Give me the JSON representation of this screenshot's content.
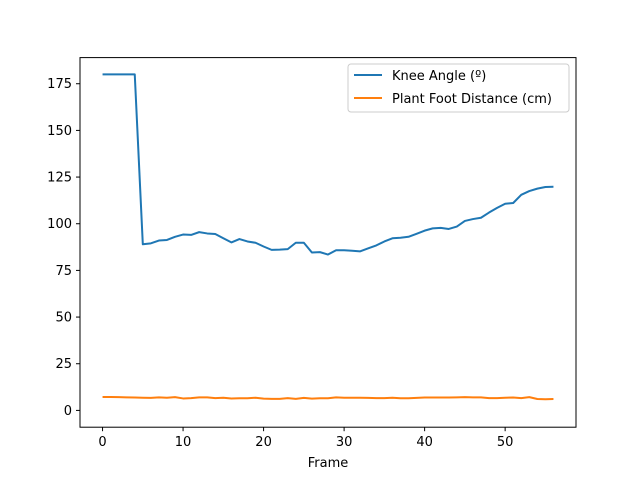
{
  "chart_data": {
    "type": "line",
    "title": "",
    "xlabel": "Frame",
    "ylabel": "",
    "xlim": [
      -2.8,
      58.8
    ],
    "ylim": [
      -9,
      189
    ],
    "grid": false,
    "legend_position": "top-right",
    "x_ticks": [
      0,
      10,
      20,
      30,
      40,
      50
    ],
    "y_ticks": [
      0,
      25,
      50,
      75,
      100,
      125,
      150,
      175
    ],
    "x": [
      0,
      1,
      2,
      3,
      4,
      5,
      6,
      7,
      8,
      9,
      10,
      11,
      12,
      13,
      14,
      15,
      16,
      17,
      18,
      19,
      20,
      21,
      22,
      23,
      24,
      25,
      26,
      27,
      28,
      29,
      30,
      31,
      32,
      33,
      34,
      35,
      36,
      37,
      38,
      39,
      40,
      41,
      42,
      43,
      44,
      45,
      46,
      47,
      48,
      49,
      50,
      51,
      52,
      53,
      54,
      55,
      56
    ],
    "series": [
      {
        "name": "Knee Angle (º)",
        "color": "#1f77b4",
        "values": [
          180,
          180,
          180,
          180,
          180,
          89,
          89.5,
          91,
          91.3,
          93,
          94.2,
          94,
          95.5,
          94.8,
          94.5,
          92.2,
          90,
          91.8,
          90.5,
          89.8,
          87.8,
          86,
          86.1,
          86.4,
          89.8,
          89.8,
          84.6,
          84.8,
          83.5,
          85.8,
          85.8,
          85.5,
          85.2,
          86.8,
          88.4,
          90.5,
          92.2,
          92.5,
          93,
          94.6,
          96.3,
          97.5,
          97.8,
          97.2,
          98.5,
          101.5,
          102.5,
          103.2,
          106,
          108.5,
          110.7,
          111.1,
          115.5,
          117.5,
          118.8,
          119.7,
          119.8
        ]
      },
      {
        "name": "Plant Foot Distance (cm)",
        "color": "#ff7f0e",
        "values": [
          7.2,
          7.2,
          7.1,
          7.0,
          6.9,
          6.8,
          6.7,
          7.0,
          6.8,
          7.1,
          6.4,
          6.6,
          7.0,
          7.0,
          6.6,
          6.8,
          6.4,
          6.5,
          6.5,
          6.8,
          6.3,
          6.2,
          6.2,
          6.6,
          6.2,
          6.7,
          6.3,
          6.5,
          6.5,
          7.0,
          6.8,
          6.8,
          6.8,
          6.7,
          6.6,
          6.6,
          6.8,
          6.5,
          6.5,
          6.7,
          6.9,
          6.9,
          6.9,
          6.9,
          7.0,
          7.1,
          7.0,
          7.0,
          6.6,
          6.6,
          6.8,
          6.9,
          6.6,
          7.1,
          6.1,
          6.0,
          6.1
        ]
      }
    ]
  }
}
